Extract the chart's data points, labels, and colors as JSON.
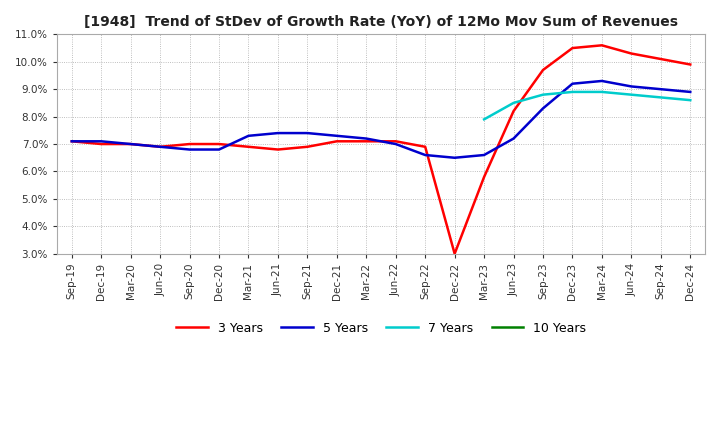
{
  "title": "[1948]  Trend of StDev of Growth Rate (YoY) of 12Mo Mov Sum of Revenues",
  "ylim": [
    0.03,
    0.11
  ],
  "yticks": [
    0.03,
    0.04,
    0.05,
    0.06,
    0.07,
    0.08,
    0.09,
    0.1,
    0.11
  ],
  "background_color": "#ffffff",
  "plot_bg_color": "#ffffff",
  "grid_color": "#aaaaaa",
  "legend_labels": [
    "3 Years",
    "5 Years",
    "7 Years",
    "10 Years"
  ],
  "legend_colors": [
    "#ff0000",
    "#0000cd",
    "#00cccc",
    "#008000"
  ],
  "x_labels": [
    "Sep-19",
    "Dec-19",
    "Mar-20",
    "Jun-20",
    "Sep-20",
    "Dec-20",
    "Mar-21",
    "Jun-21",
    "Sep-21",
    "Dec-21",
    "Mar-22",
    "Jun-22",
    "Sep-22",
    "Dec-22",
    "Mar-23",
    "Jun-23",
    "Sep-23",
    "Dec-23",
    "Mar-24",
    "Jun-24",
    "Sep-24",
    "Dec-24"
  ],
  "series_3y": [
    0.071,
    0.07,
    0.07,
    0.069,
    0.07,
    0.07,
    0.069,
    0.068,
    0.069,
    0.071,
    0.071,
    0.071,
    0.069,
    0.03,
    0.058,
    0.082,
    0.097,
    0.105,
    0.106,
    0.103,
    0.101,
    0.099
  ],
  "series_5y": [
    0.071,
    0.071,
    0.07,
    0.069,
    0.068,
    0.068,
    0.073,
    0.074,
    0.074,
    0.073,
    0.072,
    0.07,
    0.066,
    0.065,
    0.066,
    0.072,
    0.083,
    0.092,
    0.093,
    0.091,
    0.09,
    0.089
  ],
  "series_7y": [
    null,
    null,
    null,
    null,
    null,
    null,
    null,
    null,
    null,
    null,
    null,
    null,
    null,
    null,
    0.079,
    0.085,
    0.088,
    0.089,
    0.089,
    0.088,
    0.087,
    0.086
  ],
  "series_10y": [
    null,
    null,
    null,
    null,
    null,
    null,
    null,
    null,
    null,
    null,
    null,
    null,
    null,
    null,
    null,
    null,
    null,
    null,
    null,
    null,
    null,
    null
  ]
}
